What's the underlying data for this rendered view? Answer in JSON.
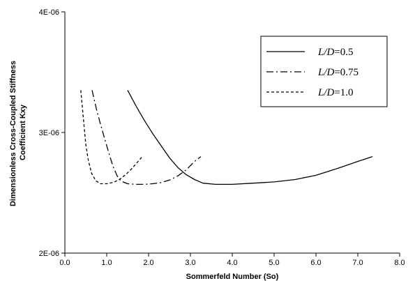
{
  "chart_data": {
    "type": "line",
    "xlabel": "Sommerfeld  Number (So)",
    "ylabel_lines": [
      "Dimensionless Cross-Coupled Stiffness",
      "Coefficient Kxy"
    ],
    "xlim": [
      0,
      8
    ],
    "ylim": [
      2,
      4
    ],
    "x_ticks": [
      0,
      1,
      2,
      3,
      4,
      5,
      6,
      7,
      8
    ],
    "x_tick_labels": [
      "0.0",
      "1.0",
      "2.0",
      "3.0",
      "4.0",
      "5.0",
      "6.0",
      "7.0",
      "8.0"
    ],
    "y_ticks": [
      2,
      3,
      4
    ],
    "y_tick_labels": [
      "2E-06",
      "3E-06",
      "4E-06"
    ],
    "grid": false,
    "legend_position": "top-right",
    "series": [
      {
        "name_prefix": "L/D",
        "name_suffix": "=0.5",
        "dash": "solid",
        "points": [
          [
            1.5,
            3.35
          ],
          [
            1.7,
            3.22
          ],
          [
            1.9,
            3.1
          ],
          [
            2.1,
            2.99
          ],
          [
            2.3,
            2.89
          ],
          [
            2.5,
            2.79
          ],
          [
            2.7,
            2.71
          ],
          [
            2.9,
            2.65
          ],
          [
            3.1,
            2.61
          ],
          [
            3.3,
            2.58
          ],
          [
            3.6,
            2.57
          ],
          [
            4.0,
            2.57
          ],
          [
            4.5,
            2.58
          ],
          [
            5.0,
            2.59
          ],
          [
            5.5,
            2.61
          ],
          [
            6.0,
            2.645
          ],
          [
            6.5,
            2.7
          ],
          [
            7.0,
            2.76
          ],
          [
            7.35,
            2.8
          ]
        ]
      },
      {
        "name_prefix": "L/D",
        "name_suffix": "=0.75",
        "dash": "dashdot",
        "points": [
          [
            0.65,
            3.35
          ],
          [
            0.75,
            3.2
          ],
          [
            0.85,
            3.07
          ],
          [
            0.95,
            2.95
          ],
          [
            1.05,
            2.83
          ],
          [
            1.15,
            2.72
          ],
          [
            1.25,
            2.64
          ],
          [
            1.35,
            2.595
          ],
          [
            1.5,
            2.575
          ],
          [
            1.7,
            2.57
          ],
          [
            1.9,
            2.57
          ],
          [
            2.1,
            2.575
          ],
          [
            2.3,
            2.585
          ],
          [
            2.5,
            2.605
          ],
          [
            2.7,
            2.64
          ],
          [
            2.9,
            2.69
          ],
          [
            3.1,
            2.76
          ],
          [
            3.25,
            2.8
          ]
        ]
      },
      {
        "name_prefix": "L/D",
        "name_suffix": "=1.0",
        "dash": "dashed",
        "points": [
          [
            0.38,
            3.35
          ],
          [
            0.42,
            3.2
          ],
          [
            0.46,
            3.05
          ],
          [
            0.5,
            2.9
          ],
          [
            0.56,
            2.77
          ],
          [
            0.64,
            2.66
          ],
          [
            0.74,
            2.6
          ],
          [
            0.85,
            2.575
          ],
          [
            1.0,
            2.575
          ],
          [
            1.15,
            2.585
          ],
          [
            1.3,
            2.61
          ],
          [
            1.45,
            2.65
          ],
          [
            1.6,
            2.7
          ],
          [
            1.75,
            2.76
          ],
          [
            1.85,
            2.8
          ]
        ]
      }
    ]
  }
}
